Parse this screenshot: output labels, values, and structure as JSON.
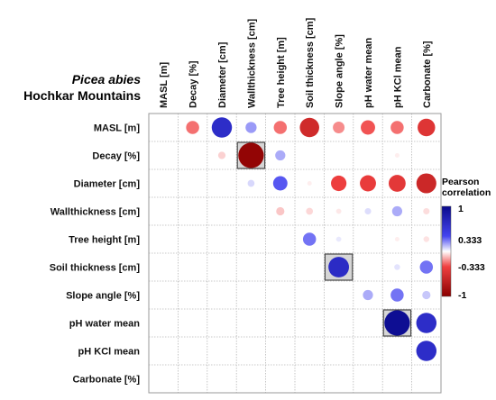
{
  "titles": {
    "species": "Picea abies",
    "site": "Hochkar Mountains"
  },
  "legend": {
    "title_line1": "Pearson",
    "title_line2": "correlation",
    "ticks": [
      "1",
      "0.333",
      "-0.333",
      "-1"
    ],
    "colors": {
      "positive": "#0a0a8c",
      "mid_positive": "#4444f0",
      "zero": "#ffffff",
      "mid_negative": "#f04040",
      "negative": "#8b0000"
    }
  },
  "chart_data": {
    "type": "heatmap",
    "subtype": "correlation-circle-matrix",
    "variables_columns": [
      "MASL [m]",
      "Decay [%]",
      "Diameter [cm]",
      "Wallthickness [cm]",
      "Tree height [m]",
      "Soil thickness [cm]",
      "Slope angle [%]",
      "pH water mean",
      "pH KCl mean",
      "Carbonate [%]"
    ],
    "variables_rows": [
      "MASL [m]",
      "Decay [%]",
      "Diameter [cm]",
      "Wallthickness [cm]",
      "Tree height [m]",
      "Soil thickness [cm]",
      "Slope angle [%]",
      "pH water mean",
      "pH KCl mean",
      "Carbonate [%]"
    ],
    "color_range": [
      -1,
      1
    ],
    "grid": true,
    "legend_position": "right",
    "cells": [
      {
        "row": 0,
        "col": 1,
        "r": -0.25
      },
      {
        "row": 0,
        "col": 2,
        "r": 0.6
      },
      {
        "row": 0,
        "col": 3,
        "r": 0.18
      },
      {
        "row": 0,
        "col": 4,
        "r": -0.25
      },
      {
        "row": 0,
        "col": 5,
        "r": -0.55
      },
      {
        "row": 0,
        "col": 6,
        "r": -0.2
      },
      {
        "row": 0,
        "col": 7,
        "r": -0.3
      },
      {
        "row": 0,
        "col": 8,
        "r": -0.25
      },
      {
        "row": 0,
        "col": 9,
        "r": -0.45
      },
      {
        "row": 1,
        "col": 2,
        "r": -0.08
      },
      {
        "row": 1,
        "col": 3,
        "r": -0.95,
        "significant": true
      },
      {
        "row": 1,
        "col": 4,
        "r": 0.15
      },
      {
        "row": 1,
        "col": 8,
        "r": -0.03
      },
      {
        "row": 2,
        "col": 3,
        "r": 0.07
      },
      {
        "row": 2,
        "col": 4,
        "r": 0.3
      },
      {
        "row": 2,
        "col": 5,
        "r": -0.03
      },
      {
        "row": 2,
        "col": 6,
        "r": -0.35
      },
      {
        "row": 2,
        "col": 7,
        "r": -0.38
      },
      {
        "row": 2,
        "col": 8,
        "r": -0.42
      },
      {
        "row": 2,
        "col": 9,
        "r": -0.58
      },
      {
        "row": 3,
        "col": 4,
        "r": -0.1
      },
      {
        "row": 3,
        "col": 5,
        "r": -0.07
      },
      {
        "row": 3,
        "col": 6,
        "r": -0.04
      },
      {
        "row": 3,
        "col": 7,
        "r": 0.06
      },
      {
        "row": 3,
        "col": 8,
        "r": 0.15
      },
      {
        "row": 3,
        "col": 9,
        "r": -0.06
      },
      {
        "row": 4,
        "col": 5,
        "r": 0.25
      },
      {
        "row": 4,
        "col": 6,
        "r": 0.04
      },
      {
        "row": 4,
        "col": 8,
        "r": -0.03
      },
      {
        "row": 4,
        "col": 9,
        "r": -0.05
      },
      {
        "row": 5,
        "col": 6,
        "r": 0.62,
        "significant": true
      },
      {
        "row": 5,
        "col": 8,
        "r": 0.05
      },
      {
        "row": 5,
        "col": 9,
        "r": 0.25
      },
      {
        "row": 6,
        "col": 7,
        "r": 0.15
      },
      {
        "row": 6,
        "col": 8,
        "r": 0.25
      },
      {
        "row": 6,
        "col": 9,
        "r": 0.1
      },
      {
        "row": 7,
        "col": 8,
        "r": 0.95,
        "significant": true
      },
      {
        "row": 7,
        "col": 9,
        "r": 0.6
      },
      {
        "row": 8,
        "col": 9,
        "r": 0.6
      }
    ]
  }
}
